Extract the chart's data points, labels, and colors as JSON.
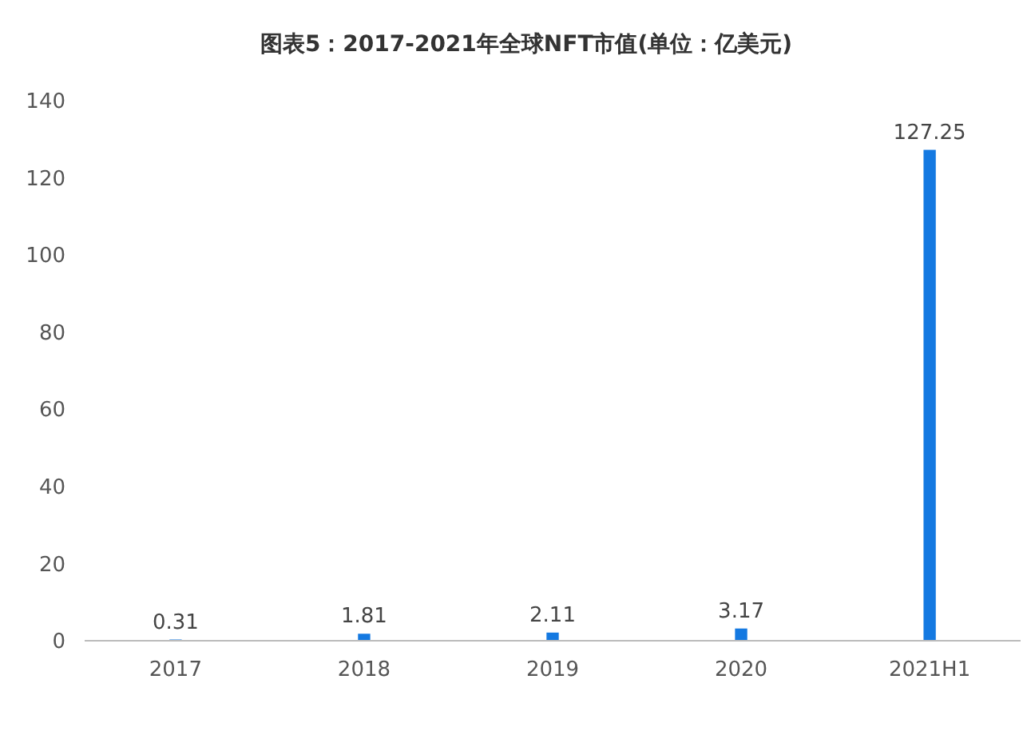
{
  "chart_data": {
    "type": "bar",
    "title": "图表5：2017-2021年全球NFT市值(单位：亿美元)",
    "categories": [
      "2017",
      "2018",
      "2019",
      "2020",
      "2021H1"
    ],
    "values": [
      0.31,
      1.81,
      2.11,
      3.17,
      127.25
    ],
    "color": "#1479e1",
    "ylim": [
      0,
      140
    ],
    "yticks": [
      0,
      20,
      40,
      60,
      80,
      100,
      120,
      140
    ],
    "grid": false,
    "data_labels": true
  }
}
